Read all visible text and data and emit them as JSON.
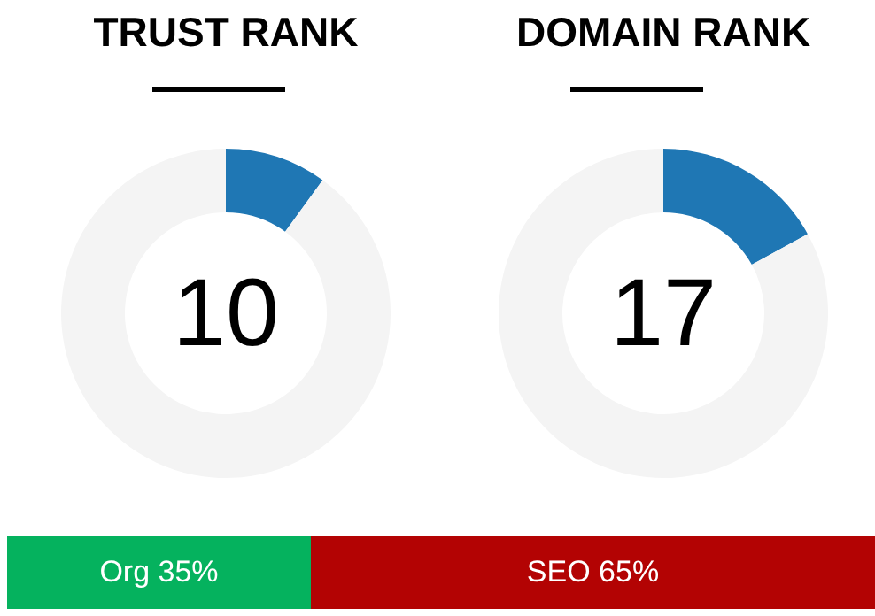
{
  "chart_data": [
    {
      "type": "donut",
      "title": "TRUST RANK",
      "categories": [
        null,
        null
      ],
      "values": [
        10,
        90
      ],
      "colors": [
        "#1f77b4",
        "#f4f4f4"
      ],
      "annotations": [
        "10"
      ]
    },
    {
      "type": "donut",
      "title": "DOMAIN RANK",
      "categories": [
        null,
        null
      ],
      "values": [
        17,
        83
      ],
      "colors": [
        "#1f77b4",
        "#f4f4f4"
      ],
      "annotations": [
        "17"
      ]
    },
    {
      "type": "bar",
      "orientation": "horizontal",
      "stacked": true,
      "categories": [
        null
      ],
      "series": [
        {
          "color": "#05b25e",
          "values": [
            35
          ],
          "value_labels": [
            "Org 35%"
          ]
        },
        {
          "color": "#b30303",
          "values": [
            65
          ],
          "value_labels": [
            "SEO 65%"
          ]
        }
      ]
    }
  ]
}
